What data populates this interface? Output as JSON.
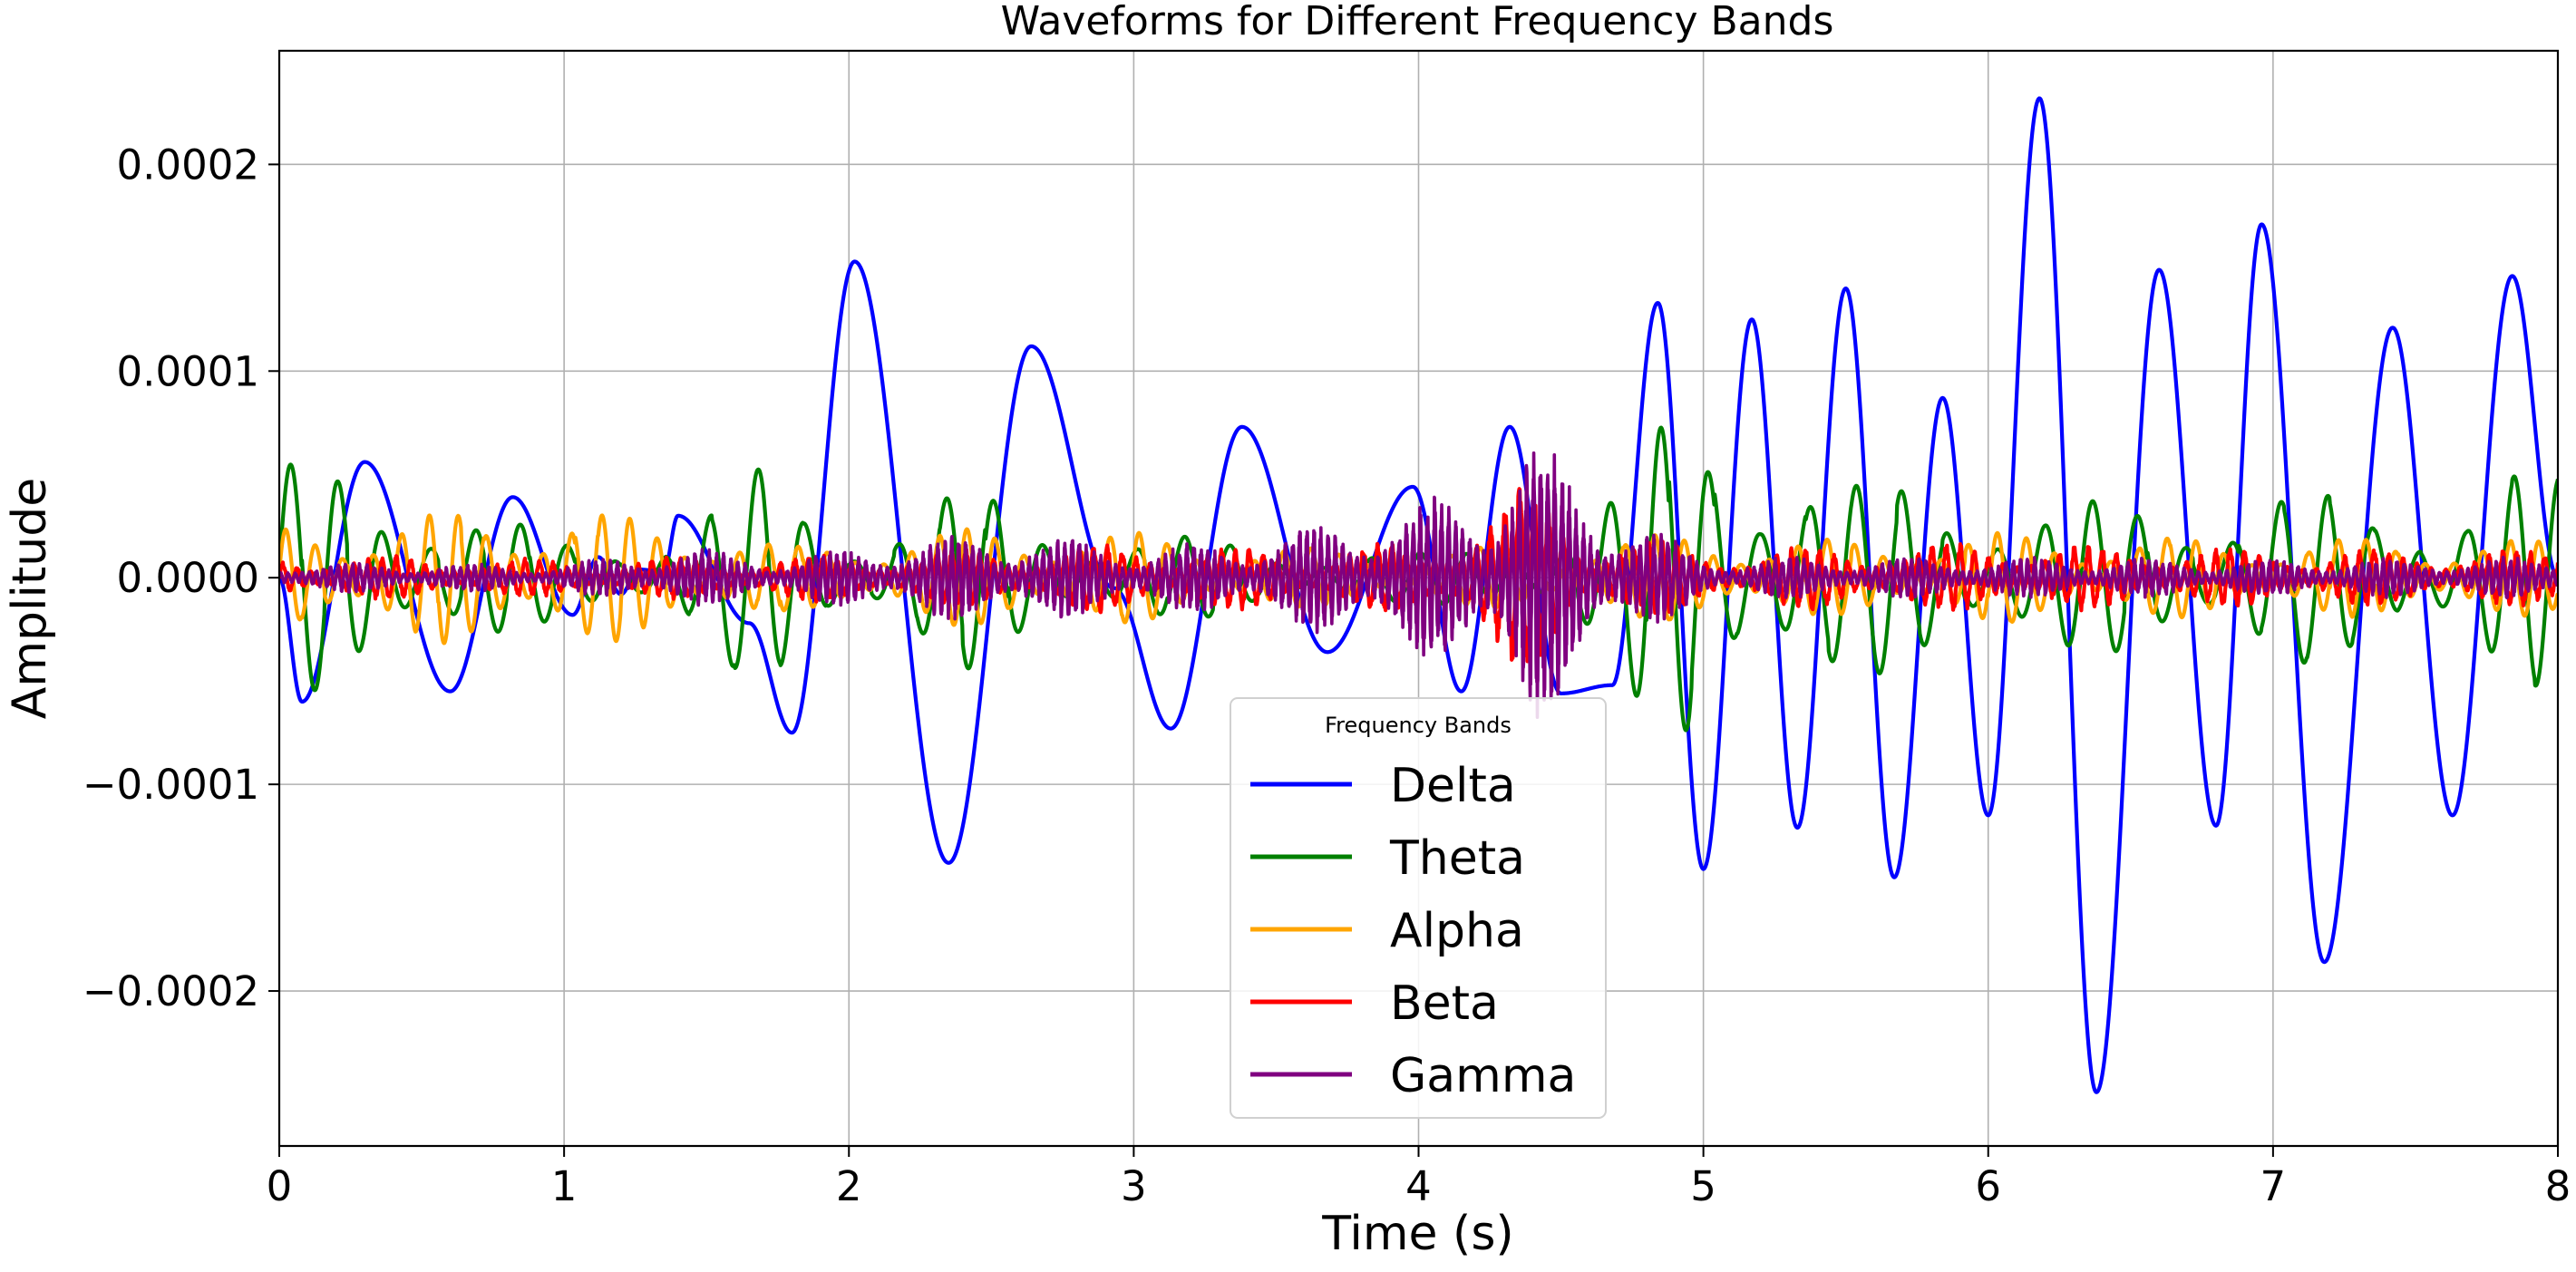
{
  "chart_data": {
    "type": "line",
    "title": "Waveforms for Different Frequency Bands",
    "xlabel": "Time (s)",
    "ylabel": "Amplitude",
    "xlim": [
      0,
      8
    ],
    "ylim": [
      -0.000275,
      0.000255
    ],
    "grid": true,
    "x_ticks": [
      0,
      1,
      2,
      3,
      4,
      5,
      6,
      7,
      8
    ],
    "x_tick_labels": [
      "0",
      "1",
      "2",
      "3",
      "4",
      "5",
      "6",
      "7",
      "8"
    ],
    "y_ticks": [
      -0.0002,
      -0.0001,
      0.0,
      0.0001,
      0.0002
    ],
    "y_tick_labels": [
      "−0.0002",
      "−0.0001",
      "0.0000",
      "0.0001",
      "0.0002"
    ],
    "legend": {
      "title": "Frequency Bands",
      "position": "lower-center",
      "entries": [
        "Delta",
        "Theta",
        "Alpha",
        "Beta",
        "Gamma"
      ]
    },
    "series": [
      {
        "name": "Delta",
        "color": "#0000ff",
        "frequency_hz_approx": 2.2,
        "extrema": [
          [
            0.0,
            0.0
          ],
          [
            0.08,
            -6e-05
          ],
          [
            0.3,
            5.6e-05
          ],
          [
            0.6,
            -5.5e-05
          ],
          [
            0.82,
            3.9e-05
          ],
          [
            1.03,
            -1.8e-05
          ],
          [
            1.12,
            1e-05
          ],
          [
            1.2,
            -8e-06
          ],
          [
            1.26,
            4e-06
          ],
          [
            1.35,
            3e-06
          ],
          [
            1.4,
            3e-05
          ],
          [
            1.65,
            -2.2e-05
          ],
          [
            1.8,
            -7.5e-05
          ],
          [
            2.02,
            0.000153
          ],
          [
            2.35,
            -0.000138
          ],
          [
            2.64,
            0.000112
          ],
          [
            2.93,
            -5e-06
          ],
          [
            3.13,
            -7.3e-05
          ],
          [
            3.38,
            7.3e-05
          ],
          [
            3.68,
            -3.6e-05
          ],
          [
            3.98,
            4.4e-05
          ],
          [
            4.15,
            -5.5e-05
          ],
          [
            4.32,
            7.3e-05
          ],
          [
            4.5,
            -5.6e-05
          ],
          [
            4.68,
            -5.2e-05
          ],
          [
            4.84,
            0.000133
          ],
          [
            5.0,
            -0.000141
          ],
          [
            5.17,
            0.000125
          ],
          [
            5.33,
            -0.000121
          ],
          [
            5.5,
            0.00014
          ],
          [
            5.67,
            -0.000145
          ],
          [
            5.84,
            8.7e-05
          ],
          [
            6.0,
            -0.000115
          ],
          [
            6.18,
            0.000232
          ],
          [
            6.38,
            -0.000249
          ],
          [
            6.6,
            0.000149
          ],
          [
            6.8,
            -0.00012
          ],
          [
            6.96,
            0.000171
          ],
          [
            7.18,
            -0.000186
          ],
          [
            7.42,
            0.000121
          ],
          [
            7.63,
            -0.000115
          ],
          [
            7.84,
            0.000146
          ],
          [
            8.0,
            0.0
          ]
        ]
      },
      {
        "name": "Theta",
        "color": "#008000",
        "frequency_hz_approx": 6,
        "envelope": [
          [
            0.0,
            5.5e-05
          ],
          [
            0.3,
            5.8e-05
          ],
          [
            0.6,
            3.5e-05
          ],
          [
            1.0,
            2e-05
          ],
          [
            1.4,
            2.5e-05
          ],
          [
            1.7,
            5.5e-05
          ],
          [
            2.0,
            2.5e-05
          ],
          [
            2.4,
            4.5e-05
          ],
          [
            2.8,
            2.5e-05
          ],
          [
            3.2,
            2e-05
          ],
          [
            3.6,
            1.5e-05
          ],
          [
            4.0,
            1.2e-05
          ],
          [
            4.4,
            2e-05
          ],
          [
            4.7,
            4.5e-05
          ],
          [
            4.95,
            9.5e-05
          ],
          [
            5.2,
            7e-05
          ],
          [
            5.5,
            4.5e-05
          ],
          [
            5.8,
            5e-05
          ],
          [
            6.2,
            3.5e-05
          ],
          [
            6.6,
            4e-05
          ],
          [
            7.0,
            4.5e-05
          ],
          [
            7.4,
            3.5e-05
          ],
          [
            7.85,
            5.5e-05
          ],
          [
            8.0,
            5e-05
          ]
        ]
      },
      {
        "name": "Alpha",
        "color": "#ffa500",
        "frequency_hz_approx": 10,
        "envelope": [
          [
            0.0,
            2.5e-05
          ],
          [
            0.6,
            3.2e-05
          ],
          [
            1.0,
            3.3e-05
          ],
          [
            1.4,
            2.8e-05
          ],
          [
            1.8,
            1.5e-05
          ],
          [
            2.2,
            2.2e-05
          ],
          [
            2.6,
            2.5e-05
          ],
          [
            3.0,
            2.2e-05
          ],
          [
            3.5,
            1.5e-05
          ],
          [
            4.0,
            1.2e-05
          ],
          [
            4.5,
            1.8e-05
          ],
          [
            5.0,
            2.2e-05
          ],
          [
            5.5,
            1.8e-05
          ],
          [
            6.0,
            2.2e-05
          ],
          [
            6.5,
            2e-05
          ],
          [
            7.0,
            1.8e-05
          ],
          [
            7.5,
            2e-05
          ],
          [
            8.0,
            1.8e-05
          ]
        ]
      },
      {
        "name": "Beta",
        "color": "#ff0000",
        "frequency_hz_approx": 20,
        "envelope": [
          [
            0.0,
            1e-05
          ],
          [
            1.0,
            8e-06
          ],
          [
            2.0,
            1e-05
          ],
          [
            3.0,
            1.5e-05
          ],
          [
            3.6,
            1.2e-05
          ],
          [
            4.0,
            1.5e-05
          ],
          [
            4.4,
            4e-05
          ],
          [
            4.6,
            2e-05
          ],
          [
            5.0,
            1.2e-05
          ],
          [
            6.0,
            1.5e-05
          ],
          [
            7.0,
            1.2e-05
          ],
          [
            8.0,
            1.2e-05
          ]
        ]
      },
      {
        "name": "Gamma",
        "color": "#800080",
        "frequency_hz_approx": 40,
        "envelope": [
          [
            0.0,
            6e-06
          ],
          [
            1.0,
            5e-06
          ],
          [
            1.4,
            1.2e-05
          ],
          [
            1.8,
            8e-06
          ],
          [
            2.2,
            1.5e-05
          ],
          [
            2.6,
            1.8e-05
          ],
          [
            3.0,
            1.2e-05
          ],
          [
            3.4,
            1.5e-05
          ],
          [
            3.8,
            2.5e-05
          ],
          [
            4.0,
            3e-05
          ],
          [
            4.2,
            3.5e-05
          ],
          [
            4.4,
            6e-05
          ],
          [
            4.6,
            3.5e-05
          ],
          [
            4.8,
            2e-05
          ],
          [
            5.0,
            8e-06
          ],
          [
            6.0,
            8e-06
          ],
          [
            7.0,
            7e-06
          ],
          [
            8.0,
            8e-06
          ]
        ]
      }
    ]
  }
}
